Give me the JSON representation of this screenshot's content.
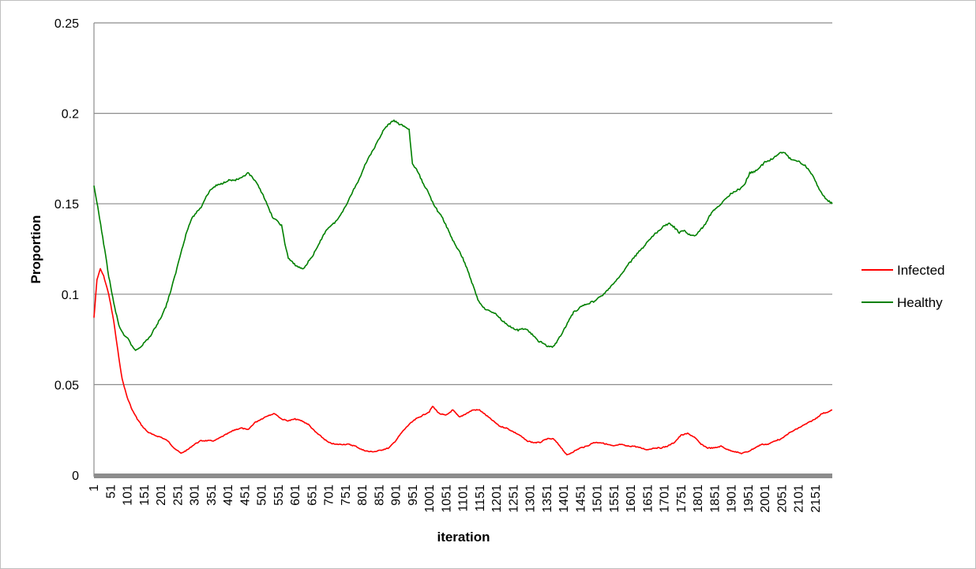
{
  "chart_data": {
    "type": "line",
    "title": "",
    "xlabel": "iteration",
    "ylabel": "Proportion",
    "xlim": [
      1,
      2201
    ],
    "ylim": [
      0,
      0.25
    ],
    "y_ticks": [
      0,
      0.05,
      0.1,
      0.15,
      0.2,
      0.25
    ],
    "y_tick_labels": [
      "0",
      "0.05",
      "0.1",
      "0.15",
      "0.2",
      "0.25"
    ],
    "x_tick_labels": [
      "1",
      "51",
      "101",
      "151",
      "201",
      "251",
      "301",
      "351",
      "401",
      "451",
      "501",
      "551",
      "601",
      "651",
      "701",
      "751",
      "801",
      "851",
      "901",
      "951",
      "1001",
      "1051",
      "1101",
      "1151",
      "1201",
      "1251",
      "1301",
      "1351",
      "1401",
      "1451",
      "1501",
      "1551",
      "1601",
      "1651",
      "1701",
      "1751",
      "1801",
      "1851",
      "1901",
      "1951",
      "2001",
      "2051",
      "2101",
      "2151"
    ],
    "grid": "horizontal",
    "legend_position": "right",
    "series": [
      {
        "name": "Infected",
        "color": "#ff0000",
        "points": [
          [
            1,
            0.087
          ],
          [
            10,
            0.108
          ],
          [
            20,
            0.114
          ],
          [
            30,
            0.11
          ],
          [
            45,
            0.1
          ],
          [
            60,
            0.085
          ],
          [
            75,
            0.065
          ],
          [
            85,
            0.053
          ],
          [
            100,
            0.043
          ],
          [
            115,
            0.036
          ],
          [
            130,
            0.031
          ],
          [
            145,
            0.027
          ],
          [
            160,
            0.024
          ],
          [
            180,
            0.022
          ],
          [
            200,
            0.021
          ],
          [
            220,
            0.019
          ],
          [
            240,
            0.015
          ],
          [
            260,
            0.012
          ],
          [
            280,
            0.014
          ],
          [
            300,
            0.017
          ],
          [
            320,
            0.019
          ],
          [
            340,
            0.019
          ],
          [
            360,
            0.019
          ],
          [
            380,
            0.021
          ],
          [
            400,
            0.023
          ],
          [
            420,
            0.025
          ],
          [
            440,
            0.026
          ],
          [
            460,
            0.025
          ],
          [
            480,
            0.029
          ],
          [
            500,
            0.031
          ],
          [
            520,
            0.033
          ],
          [
            540,
            0.034
          ],
          [
            560,
            0.031
          ],
          [
            580,
            0.03
          ],
          [
            600,
            0.031
          ],
          [
            620,
            0.03
          ],
          [
            640,
            0.028
          ],
          [
            660,
            0.024
          ],
          [
            680,
            0.021
          ],
          [
            700,
            0.018
          ],
          [
            720,
            0.017
          ],
          [
            740,
            0.017
          ],
          [
            760,
            0.017
          ],
          [
            780,
            0.016
          ],
          [
            800,
            0.014
          ],
          [
            820,
            0.013
          ],
          [
            840,
            0.013
          ],
          [
            860,
            0.014
          ],
          [
            880,
            0.015
          ],
          [
            900,
            0.019
          ],
          [
            920,
            0.024
          ],
          [
            940,
            0.028
          ],
          [
            960,
            0.031
          ],
          [
            980,
            0.033
          ],
          [
            1000,
            0.035
          ],
          [
            1010,
            0.038
          ],
          [
            1030,
            0.034
          ],
          [
            1050,
            0.033
          ],
          [
            1070,
            0.036
          ],
          [
            1090,
            0.032
          ],
          [
            1110,
            0.034
          ],
          [
            1130,
            0.036
          ],
          [
            1150,
            0.036
          ],
          [
            1170,
            0.033
          ],
          [
            1190,
            0.03
          ],
          [
            1210,
            0.027
          ],
          [
            1230,
            0.026
          ],
          [
            1250,
            0.024
          ],
          [
            1270,
            0.022
          ],
          [
            1290,
            0.019
          ],
          [
            1310,
            0.018
          ],
          [
            1330,
            0.018
          ],
          [
            1350,
            0.02
          ],
          [
            1370,
            0.02
          ],
          [
            1390,
            0.016
          ],
          [
            1410,
            0.011
          ],
          [
            1430,
            0.013
          ],
          [
            1450,
            0.015
          ],
          [
            1470,
            0.016
          ],
          [
            1490,
            0.018
          ],
          [
            1510,
            0.018
          ],
          [
            1530,
            0.017
          ],
          [
            1550,
            0.016
          ],
          [
            1570,
            0.017
          ],
          [
            1590,
            0.016
          ],
          [
            1610,
            0.016
          ],
          [
            1630,
            0.015
          ],
          [
            1650,
            0.014
          ],
          [
            1670,
            0.015
          ],
          [
            1690,
            0.015
          ],
          [
            1710,
            0.016
          ],
          [
            1730,
            0.018
          ],
          [
            1750,
            0.022
          ],
          [
            1770,
            0.023
          ],
          [
            1790,
            0.021
          ],
          [
            1810,
            0.017
          ],
          [
            1830,
            0.015
          ],
          [
            1850,
            0.015
          ],
          [
            1870,
            0.016
          ],
          [
            1890,
            0.014
          ],
          [
            1910,
            0.013
          ],
          [
            1930,
            0.012
          ],
          [
            1950,
            0.013
          ],
          [
            1970,
            0.015
          ],
          [
            1990,
            0.017
          ],
          [
            2010,
            0.017
          ],
          [
            2030,
            0.019
          ],
          [
            2050,
            0.02
          ],
          [
            2070,
            0.023
          ],
          [
            2090,
            0.025
          ],
          [
            2110,
            0.027
          ],
          [
            2130,
            0.029
          ],
          [
            2150,
            0.031
          ],
          [
            2170,
            0.034
          ],
          [
            2190,
            0.035
          ],
          [
            2201,
            0.036
          ]
        ]
      },
      {
        "name": "Healthy",
        "color": "#008000",
        "points": [
          [
            1,
            0.16
          ],
          [
            15,
            0.145
          ],
          [
            30,
            0.128
          ],
          [
            45,
            0.11
          ],
          [
            60,
            0.095
          ],
          [
            75,
            0.083
          ],
          [
            90,
            0.077
          ],
          [
            105,
            0.075
          ],
          [
            115,
            0.071
          ],
          [
            125,
            0.069
          ],
          [
            140,
            0.071
          ],
          [
            155,
            0.074
          ],
          [
            170,
            0.077
          ],
          [
            185,
            0.082
          ],
          [
            200,
            0.087
          ],
          [
            215,
            0.093
          ],
          [
            230,
            0.102
          ],
          [
            245,
            0.112
          ],
          [
            260,
            0.123
          ],
          [
            275,
            0.133
          ],
          [
            290,
            0.141
          ],
          [
            305,
            0.145
          ],
          [
            320,
            0.148
          ],
          [
            335,
            0.154
          ],
          [
            350,
            0.158
          ],
          [
            365,
            0.16
          ],
          [
            380,
            0.161
          ],
          [
            400,
            0.163
          ],
          [
            420,
            0.163
          ],
          [
            440,
            0.164
          ],
          [
            460,
            0.167
          ],
          [
            475,
            0.164
          ],
          [
            490,
            0.16
          ],
          [
            505,
            0.155
          ],
          [
            520,
            0.148
          ],
          [
            535,
            0.142
          ],
          [
            550,
            0.14
          ],
          [
            560,
            0.138
          ],
          [
            570,
            0.128
          ],
          [
            580,
            0.12
          ],
          [
            595,
            0.117
          ],
          [
            610,
            0.115
          ],
          [
            625,
            0.114
          ],
          [
            640,
            0.118
          ],
          [
            655,
            0.122
          ],
          [
            670,
            0.127
          ],
          [
            685,
            0.133
          ],
          [
            700,
            0.137
          ],
          [
            715,
            0.139
          ],
          [
            730,
            0.142
          ],
          [
            745,
            0.147
          ],
          [
            760,
            0.152
          ],
          [
            775,
            0.158
          ],
          [
            790,
            0.163
          ],
          [
            805,
            0.17
          ],
          [
            820,
            0.176
          ],
          [
            835,
            0.18
          ],
          [
            850,
            0.186
          ],
          [
            865,
            0.191
          ],
          [
            880,
            0.194
          ],
          [
            895,
            0.196
          ],
          [
            910,
            0.194
          ],
          [
            925,
            0.193
          ],
          [
            940,
            0.191
          ],
          [
            950,
            0.172
          ],
          [
            965,
            0.168
          ],
          [
            980,
            0.162
          ],
          [
            995,
            0.157
          ],
          [
            1010,
            0.151
          ],
          [
            1025,
            0.146
          ],
          [
            1040,
            0.142
          ],
          [
            1055,
            0.136
          ],
          [
            1070,
            0.13
          ],
          [
            1085,
            0.125
          ],
          [
            1100,
            0.12
          ],
          [
            1115,
            0.113
          ],
          [
            1130,
            0.105
          ],
          [
            1145,
            0.097
          ],
          [
            1160,
            0.093
          ],
          [
            1175,
            0.091
          ],
          [
            1190,
            0.09
          ],
          [
            1205,
            0.088
          ],
          [
            1220,
            0.085
          ],
          [
            1235,
            0.083
          ],
          [
            1250,
            0.081
          ],
          [
            1265,
            0.08
          ],
          [
            1280,
            0.081
          ],
          [
            1295,
            0.08
          ],
          [
            1310,
            0.077
          ],
          [
            1325,
            0.074
          ],
          [
            1340,
            0.073
          ],
          [
            1355,
            0.071
          ],
          [
            1370,
            0.071
          ],
          [
            1385,
            0.075
          ],
          [
            1400,
            0.08
          ],
          [
            1415,
            0.085
          ],
          [
            1430,
            0.09
          ],
          [
            1445,
            0.092
          ],
          [
            1460,
            0.094
          ],
          [
            1475,
            0.095
          ],
          [
            1490,
            0.096
          ],
          [
            1505,
            0.098
          ],
          [
            1520,
            0.1
          ],
          [
            1535,
            0.103
          ],
          [
            1550,
            0.106
          ],
          [
            1565,
            0.109
          ],
          [
            1580,
            0.113
          ],
          [
            1595,
            0.117
          ],
          [
            1610,
            0.12
          ],
          [
            1625,
            0.124
          ],
          [
            1640,
            0.126
          ],
          [
            1655,
            0.13
          ],
          [
            1670,
            0.133
          ],
          [
            1685,
            0.135
          ],
          [
            1700,
            0.138
          ],
          [
            1715,
            0.139
          ],
          [
            1730,
            0.137
          ],
          [
            1745,
            0.134
          ],
          [
            1760,
            0.135
          ],
          [
            1775,
            0.133
          ],
          [
            1790,
            0.132
          ],
          [
            1805,
            0.135
          ],
          [
            1820,
            0.138
          ],
          [
            1835,
            0.143
          ],
          [
            1850,
            0.147
          ],
          [
            1865,
            0.149
          ],
          [
            1880,
            0.152
          ],
          [
            1895,
            0.155
          ],
          [
            1910,
            0.157
          ],
          [
            1925,
            0.158
          ],
          [
            1940,
            0.161
          ],
          [
            1955,
            0.167
          ],
          [
            1970,
            0.168
          ],
          [
            1985,
            0.17
          ],
          [
            2000,
            0.173
          ],
          [
            2015,
            0.174
          ],
          [
            2030,
            0.176
          ],
          [
            2045,
            0.178
          ],
          [
            2060,
            0.178
          ],
          [
            2075,
            0.175
          ],
          [
            2090,
            0.174
          ],
          [
            2105,
            0.173
          ],
          [
            2120,
            0.171
          ],
          [
            2135,
            0.168
          ],
          [
            2150,
            0.163
          ],
          [
            2165,
            0.157
          ],
          [
            2180,
            0.153
          ],
          [
            2201,
            0.15
          ]
        ]
      }
    ]
  }
}
